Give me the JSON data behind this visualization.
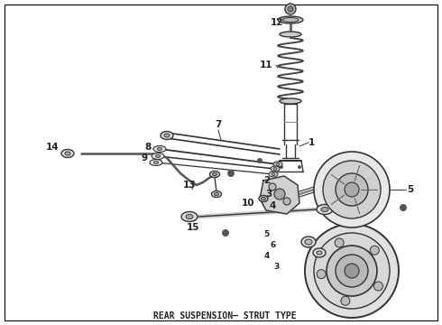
{
  "title": "REAR SUSPENSION– STRUT TYPE",
  "background_color": "#ffffff",
  "border_color": "#000000",
  "text_color": "#222222",
  "title_fontsize": 7.0,
  "fig_width": 4.9,
  "fig_height": 3.6,
  "dpi": 100,
  "border_linewidth": 0.8,
  "lc": "#333333",
  "lw": 1.0
}
